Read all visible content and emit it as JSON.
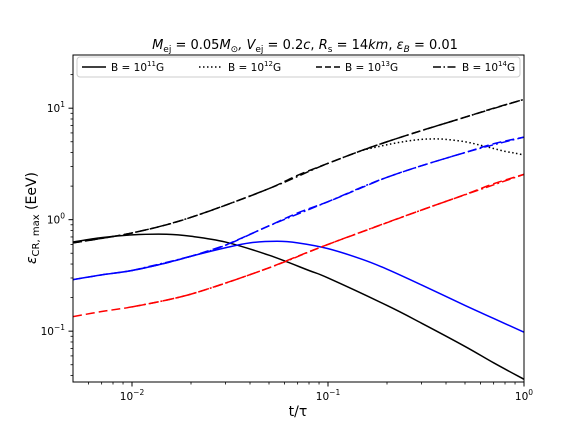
{
  "chart_data": {
    "type": "line",
    "title": "M_ej = 0.05 M_⊙ , V_ej = 0.2c, R_s = 14km, ε_B = 0.01",
    "title_parts": {
      "m_sym": "M",
      "m_sub": "ej",
      "m_val": " = 0.05",
      "msun_sym": "M",
      "msun_sub": "⊙",
      "v_sym": ", V",
      "v_sub": "ej",
      "v_val": " = 0.2",
      "c_sym": "c",
      "rs_sep": ", ",
      "rs_sym": "R",
      "rs_sub": "s",
      "rs_eq": " = 14",
      "km_sym": "km",
      "eb_sep": ", ",
      "eb_sym": "ε",
      "eb_sub": "B",
      "eb_val": " = 0.01"
    },
    "xlabel": "t/τ",
    "ylabel": "ε_CR, max (EeV)",
    "ylabel_parts": {
      "sym": "ε",
      "sub": "CR, max",
      "unit": " (EeV)"
    },
    "x_scale": "log",
    "y_scale": "log",
    "xlim": [
      0.005,
      1.0
    ],
    "ylim": [
      0.035,
      30
    ],
    "x_ticks": [
      {
        "value": 0.01,
        "base": "10",
        "exp": "−2"
      },
      {
        "value": 0.1,
        "base": "10",
        "exp": "−1"
      },
      {
        "value": 1,
        "base": "10",
        "exp": "0"
      }
    ],
    "y_ticks": [
      {
        "value": 0.1,
        "base": "10",
        "exp": "−1"
      },
      {
        "value": 1,
        "base": "10",
        "exp": "0"
      },
      {
        "value": 10,
        "base": "10",
        "exp": "1"
      }
    ],
    "legend_position": "top",
    "legend_entries": [
      {
        "text": "B = 10",
        "exp": "11",
        "unit": "G",
        "style": "solid"
      },
      {
        "text": "B = 10",
        "exp": "12",
        "unit": "G",
        "style": "dotted"
      },
      {
        "text": "B = 10",
        "exp": "13",
        "unit": "G",
        "style": "dashed"
      },
      {
        "text": "B = 10",
        "exp": "14",
        "unit": "G",
        "style": "dashdot"
      }
    ],
    "series": [
      {
        "color": "#000000",
        "style": "solid",
        "x": [
          0.005,
          0.007,
          0.01,
          0.015,
          0.02,
          0.03,
          0.05,
          0.08,
          0.1,
          0.2,
          0.3,
          0.5,
          0.7,
          1.0
        ],
        "y": [
          0.63,
          0.69,
          0.73,
          0.74,
          0.71,
          0.63,
          0.48,
          0.35,
          0.3,
          0.17,
          0.118,
          0.073,
          0.052,
          0.037
        ]
      },
      {
        "color": "#0000ff",
        "style": "solid",
        "x": [
          0.005,
          0.007,
          0.01,
          0.015,
          0.02,
          0.03,
          0.04,
          0.055,
          0.07,
          0.1,
          0.15,
          0.2,
          0.3,
          0.5,
          0.7,
          1.0
        ],
        "y": [
          0.29,
          0.32,
          0.35,
          0.41,
          0.47,
          0.56,
          0.62,
          0.64,
          0.62,
          0.55,
          0.44,
          0.36,
          0.26,
          0.17,
          0.13,
          0.098
        ]
      },
      {
        "color": "#000000",
        "style": "dotted",
        "x": [
          0.15,
          0.2,
          0.25,
          0.3,
          0.35,
          0.4,
          0.5,
          0.6,
          0.7,
          0.8,
          0.9,
          1.0
        ],
        "y": [
          4.2,
          4.7,
          5.05,
          5.25,
          5.3,
          5.25,
          5.0,
          4.65,
          4.35,
          4.1,
          3.95,
          3.8
        ]
      },
      {
        "color": "#0000ff",
        "style": "dashed",
        "x": [
          0.03,
          0.05,
          0.07,
          0.1,
          0.15,
          0.2,
          0.3,
          0.5,
          0.7,
          1.0
        ],
        "y": [
          0.59,
          0.88,
          1.15,
          1.45,
          1.95,
          2.4,
          3.05,
          4.0,
          4.8,
          5.5
        ]
      },
      {
        "color": "#000000",
        "style": "dashed",
        "x": [
          0.005,
          0.007,
          0.01,
          0.015,
          0.02,
          0.03,
          0.05,
          0.07,
          0.1,
          0.15,
          0.2
        ],
        "y": [
          0.62,
          0.68,
          0.76,
          0.9,
          1.05,
          1.35,
          1.9,
          2.5,
          3.2,
          4.2,
          5.0
        ]
      },
      {
        "color": "#000000",
        "style": "dashed",
        "x": [
          0.2,
          0.3,
          0.5,
          0.7,
          1.0
        ],
        "y": [
          5.0,
          6.3,
          8.3,
          10.0,
          12.0
        ]
      },
      {
        "color": "#0000ff",
        "style": "dashed",
        "x": [
          0.005,
          0.007,
          0.01,
          0.015,
          0.02,
          0.03
        ],
        "y": [
          0.29,
          0.32,
          0.35,
          0.41,
          0.47,
          0.59
        ]
      },
      {
        "color": "#0000ff",
        "style": "dashdot",
        "x": [
          0.01,
          0.02,
          0.03,
          0.05,
          0.1,
          0.2,
          0.5,
          1.0
        ],
        "y": [
          0.35,
          0.47,
          0.59,
          0.88,
          1.45,
          2.4,
          4.0,
          5.5
        ]
      },
      {
        "color": "#ff0000",
        "style": "dashed",
        "x": [
          0.005,
          0.007,
          0.01,
          0.015,
          0.02,
          0.03,
          0.05,
          0.07,
          0.1,
          0.15,
          0.2,
          0.3,
          0.5,
          0.7,
          1.0
        ],
        "y": [
          0.135,
          0.15,
          0.165,
          0.19,
          0.215,
          0.27,
          0.37,
          0.47,
          0.6,
          0.78,
          0.94,
          1.22,
          1.68,
          2.1,
          2.55
        ]
      },
      {
        "color": "#ff0000",
        "style": "dashdot",
        "x": [
          0.01,
          0.02,
          0.05,
          0.1,
          0.3,
          1.0
        ],
        "y": [
          0.165,
          0.215,
          0.37,
          0.6,
          1.22,
          2.55
        ]
      },
      {
        "color": "#000000",
        "style": "dashdot",
        "x": [
          0.005,
          0.01,
          0.02,
          0.05,
          0.1,
          0.2,
          0.5,
          1.0
        ],
        "y": [
          0.62,
          0.76,
          1.05,
          1.9,
          3.2,
          5.0,
          8.3,
          12.0
        ]
      }
    ]
  }
}
